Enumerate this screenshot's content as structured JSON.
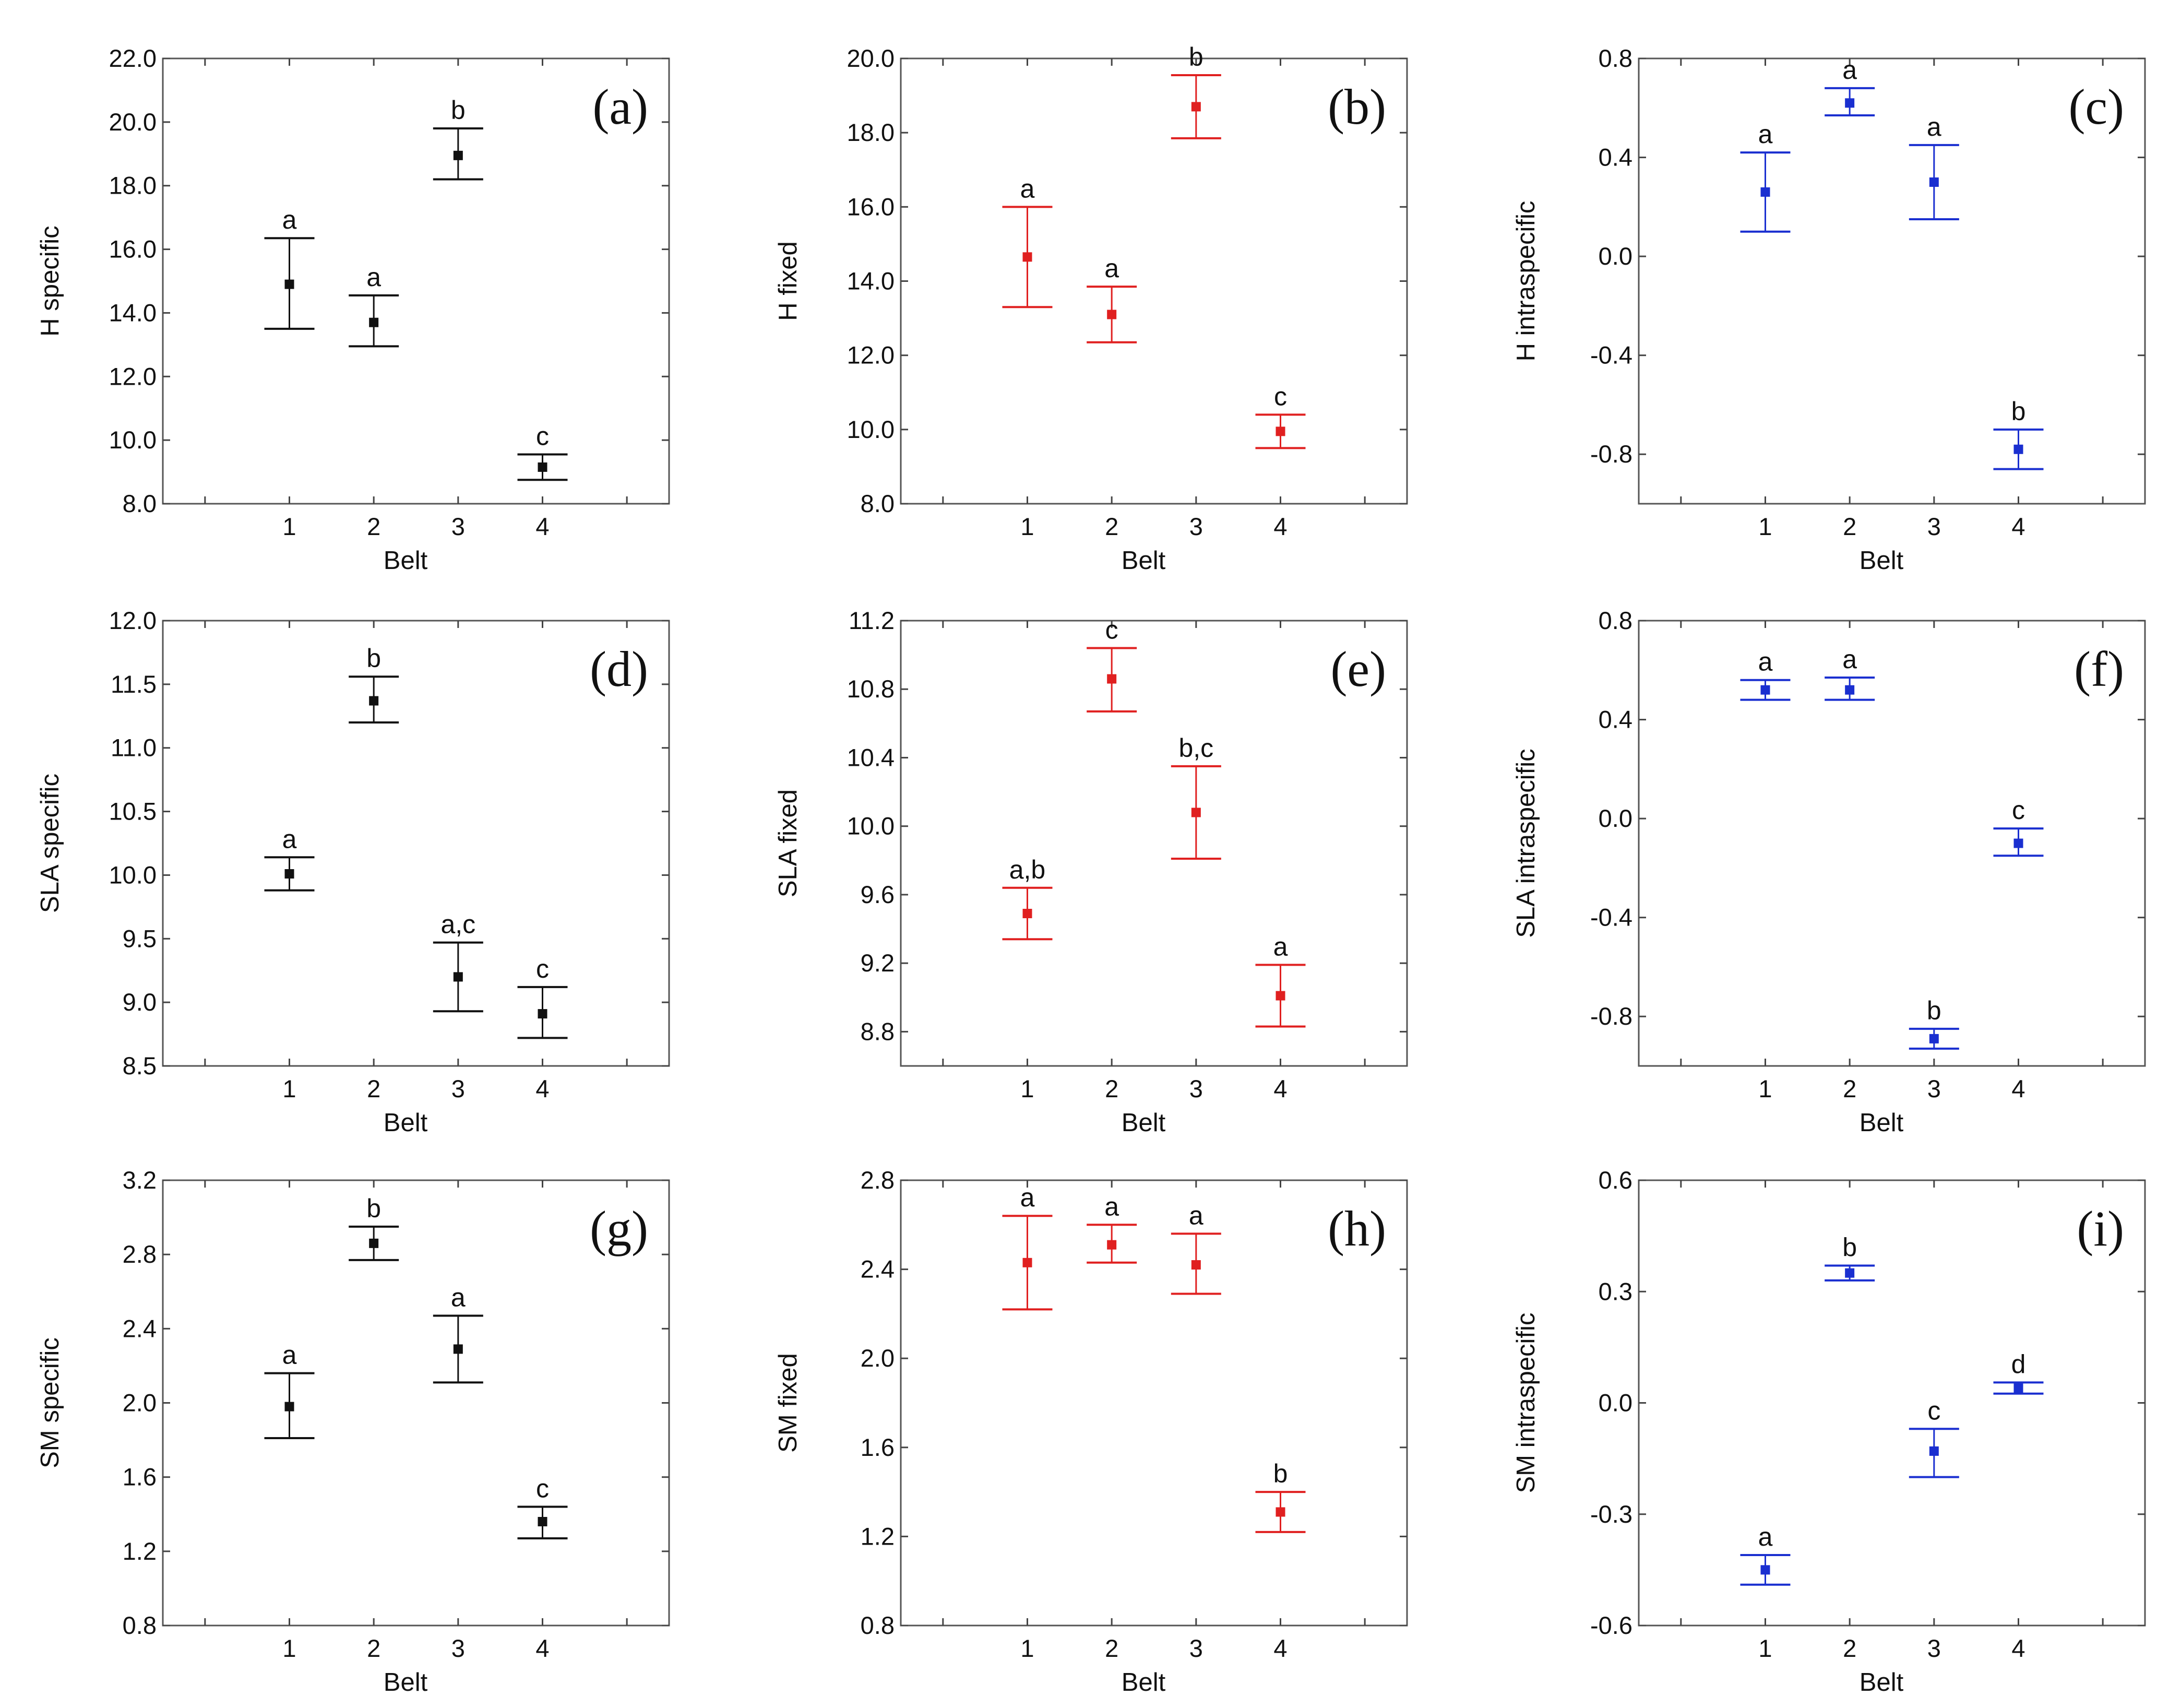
{
  "chart_data": [
    {
      "id": "a",
      "type": "scatter",
      "panel_label": "(a)",
      "color": "#111111",
      "xlabel": "Belt",
      "ylabel": "H specific",
      "ylim": [
        8.0,
        22.0
      ],
      "yticks": [
        8.0,
        10.0,
        12.0,
        14.0,
        16.0,
        18.0,
        20.0,
        22.0
      ],
      "ydecimals": 1,
      "categories": [
        "1",
        "2",
        "3",
        "4"
      ],
      "points": [
        {
          "x": 1,
          "mean": 14.9,
          "low": 13.5,
          "high": 16.35,
          "sig": "a"
        },
        {
          "x": 2,
          "mean": 13.7,
          "low": 12.95,
          "high": 14.55,
          "sig": "a"
        },
        {
          "x": 3,
          "mean": 18.95,
          "low": 18.2,
          "high": 19.8,
          "sig": "b"
        },
        {
          "x": 4,
          "mean": 9.15,
          "low": 8.75,
          "high": 9.55,
          "sig": "c"
        }
      ]
    },
    {
      "id": "b",
      "type": "scatter",
      "panel_label": "(b)",
      "color": "#e02020",
      "xlabel": "Belt",
      "ylabel": "H fixed",
      "ylim": [
        8.0,
        20.0
      ],
      "yticks": [
        8.0,
        10.0,
        12.0,
        14.0,
        16.0,
        18.0,
        20.0
      ],
      "ydecimals": 1,
      "categories": [
        "1",
        "2",
        "3",
        "4"
      ],
      "points": [
        {
          "x": 1,
          "mean": 14.65,
          "low": 13.3,
          "high": 16.0,
          "sig": "a"
        },
        {
          "x": 2,
          "mean": 13.1,
          "low": 12.35,
          "high": 13.85,
          "sig": "a"
        },
        {
          "x": 3,
          "mean": 18.7,
          "low": 17.85,
          "high": 19.55,
          "sig": "b"
        },
        {
          "x": 4,
          "mean": 9.95,
          "low": 9.5,
          "high": 10.4,
          "sig": "c"
        }
      ]
    },
    {
      "id": "c",
      "type": "scatter",
      "panel_label": "(c)",
      "color": "#1a2fd0",
      "xlabel": "Belt",
      "ylabel": "H intraspecific",
      "ylim": [
        -1.0,
        0.8
      ],
      "yticks": [
        -0.8,
        -0.4,
        0.0,
        0.4,
        0.8
      ],
      "ydecimals": 1,
      "categories": [
        "1",
        "2",
        "3",
        "4"
      ],
      "points": [
        {
          "x": 1,
          "mean": 0.26,
          "low": 0.1,
          "high": 0.42,
          "sig": "a"
        },
        {
          "x": 2,
          "mean": 0.62,
          "low": 0.57,
          "high": 0.68,
          "sig": "a"
        },
        {
          "x": 3,
          "mean": 0.3,
          "low": 0.15,
          "high": 0.45,
          "sig": "a"
        },
        {
          "x": 4,
          "mean": -0.78,
          "low": -0.86,
          "high": -0.7,
          "sig": "b"
        }
      ]
    },
    {
      "id": "d",
      "type": "scatter",
      "panel_label": "(d)",
      "color": "#111111",
      "xlabel": "Belt",
      "ylabel": "SLA specific",
      "ylim": [
        8.5,
        12.0
      ],
      "yticks": [
        8.5,
        9.0,
        9.5,
        10.0,
        10.5,
        11.0,
        11.5,
        12.0
      ],
      "ydecimals": 1,
      "categories": [
        "1",
        "2",
        "3",
        "4"
      ],
      "points": [
        {
          "x": 1,
          "mean": 10.01,
          "low": 9.88,
          "high": 10.14,
          "sig": "a"
        },
        {
          "x": 2,
          "mean": 11.37,
          "low": 11.2,
          "high": 11.56,
          "sig": "b"
        },
        {
          "x": 3,
          "mean": 9.2,
          "low": 8.93,
          "high": 9.47,
          "sig": "a,c"
        },
        {
          "x": 4,
          "mean": 8.91,
          "low": 8.72,
          "high": 9.12,
          "sig": "c"
        }
      ]
    },
    {
      "id": "e",
      "type": "scatter",
      "panel_label": "(e)",
      "color": "#e02020",
      "xlabel": "Belt",
      "ylabel": "SLA fixed",
      "ylim": [
        8.6,
        11.2
      ],
      "yticks": [
        8.8,
        9.2,
        9.6,
        10.0,
        10.4,
        10.8,
        11.2
      ],
      "ydecimals": 1,
      "categories": [
        "1",
        "2",
        "3",
        "4"
      ],
      "points": [
        {
          "x": 1,
          "mean": 9.49,
          "low": 9.34,
          "high": 9.64,
          "sig": "a,b"
        },
        {
          "x": 2,
          "mean": 10.86,
          "low": 10.67,
          "high": 11.04,
          "sig": "c"
        },
        {
          "x": 3,
          "mean": 10.08,
          "low": 9.81,
          "high": 10.35,
          "sig": "b,c"
        },
        {
          "x": 4,
          "mean": 9.01,
          "low": 8.83,
          "high": 9.19,
          "sig": "a"
        }
      ]
    },
    {
      "id": "f",
      "type": "scatter",
      "panel_label": "(f)",
      "color": "#1a2fd0",
      "xlabel": "Belt",
      "ylabel": "SLA intraspecific",
      "ylim": [
        -1.0,
        0.8
      ],
      "yticks": [
        -0.8,
        -0.4,
        0.0,
        0.4,
        0.8
      ],
      "ydecimals": 1,
      "categories": [
        "1",
        "2",
        "3",
        "4"
      ],
      "points": [
        {
          "x": 1,
          "mean": 0.52,
          "low": 0.48,
          "high": 0.56,
          "sig": "a"
        },
        {
          "x": 2,
          "mean": 0.52,
          "low": 0.48,
          "high": 0.57,
          "sig": "a"
        },
        {
          "x": 3,
          "mean": -0.89,
          "low": -0.93,
          "high": -0.85,
          "sig": "b"
        },
        {
          "x": 4,
          "mean": -0.1,
          "low": -0.15,
          "high": -0.04,
          "sig": "c"
        }
      ]
    },
    {
      "id": "g",
      "type": "scatter",
      "panel_label": "(g)",
      "color": "#111111",
      "xlabel": "Belt",
      "ylabel": "SM specific",
      "ylim": [
        0.8,
        3.2
      ],
      "yticks": [
        0.8,
        1.2,
        1.6,
        2.0,
        2.4,
        2.8,
        3.2
      ],
      "ydecimals": 1,
      "categories": [
        "1",
        "2",
        "3",
        "4"
      ],
      "points": [
        {
          "x": 1,
          "mean": 1.98,
          "low": 1.81,
          "high": 2.16,
          "sig": "a"
        },
        {
          "x": 2,
          "mean": 2.86,
          "low": 2.77,
          "high": 2.95,
          "sig": "b"
        },
        {
          "x": 3,
          "mean": 2.29,
          "low": 2.11,
          "high": 2.47,
          "sig": "a"
        },
        {
          "x": 4,
          "mean": 1.36,
          "low": 1.27,
          "high": 1.44,
          "sig": "c"
        }
      ]
    },
    {
      "id": "h",
      "type": "scatter",
      "panel_label": "(h)",
      "color": "#e02020",
      "xlabel": "Belt",
      "ylabel": "SM fixed",
      "ylim": [
        0.8,
        2.8
      ],
      "yticks": [
        0.8,
        1.2,
        1.6,
        2.0,
        2.4,
        2.8
      ],
      "ydecimals": 1,
      "categories": [
        "1",
        "2",
        "3",
        "4"
      ],
      "points": [
        {
          "x": 1,
          "mean": 2.43,
          "low": 2.22,
          "high": 2.64,
          "sig": "a"
        },
        {
          "x": 2,
          "mean": 2.51,
          "low": 2.43,
          "high": 2.6,
          "sig": "a"
        },
        {
          "x": 3,
          "mean": 2.42,
          "low": 2.29,
          "high": 2.56,
          "sig": "a"
        },
        {
          "x": 4,
          "mean": 1.31,
          "low": 1.22,
          "high": 1.4,
          "sig": "b"
        }
      ]
    },
    {
      "id": "i",
      "type": "scatter",
      "panel_label": "(i)",
      "color": "#1a2fd0",
      "xlabel": "Belt",
      "ylabel": "SM intraspecific",
      "ylim": [
        -0.6,
        0.6
      ],
      "yticks": [
        -0.6,
        -0.3,
        0.0,
        0.3,
        0.6
      ],
      "ydecimals": 1,
      "categories": [
        "1",
        "2",
        "3",
        "4"
      ],
      "points": [
        {
          "x": 1,
          "mean": -0.45,
          "low": -0.49,
          "high": -0.41,
          "sig": "a"
        },
        {
          "x": 2,
          "mean": 0.35,
          "low": 0.33,
          "high": 0.37,
          "sig": "b"
        },
        {
          "x": 3,
          "mean": -0.13,
          "low": -0.2,
          "high": -0.07,
          "sig": "c"
        },
        {
          "x": 4,
          "mean": 0.04,
          "low": 0.025,
          "high": 0.055,
          "sig": "d"
        }
      ]
    }
  ]
}
